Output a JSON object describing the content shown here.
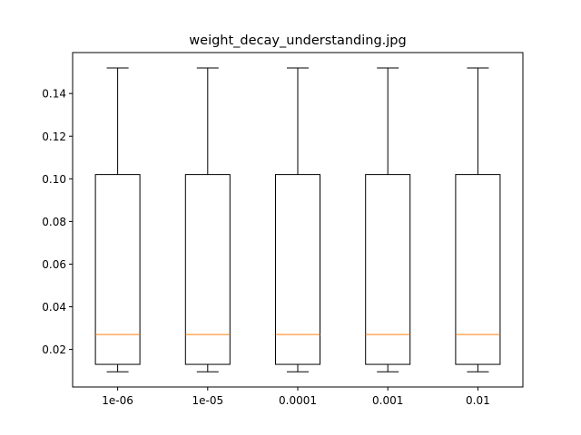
{
  "chart_data": {
    "type": "box",
    "title": "weight_decay_understanding.jpg",
    "xlabel": "",
    "ylabel": "",
    "categories": [
      "1e-06",
      "1e-05",
      "0.0001",
      "0.001",
      "0.01"
    ],
    "boxes": [
      {
        "whislo": 0.0095,
        "q1": 0.013,
        "median": 0.027,
        "q3": 0.102,
        "whishi": 0.152
      },
      {
        "whislo": 0.0095,
        "q1": 0.013,
        "median": 0.027,
        "q3": 0.102,
        "whishi": 0.152
      },
      {
        "whislo": 0.0095,
        "q1": 0.013,
        "median": 0.027,
        "q3": 0.102,
        "whishi": 0.152
      },
      {
        "whislo": 0.0095,
        "q1": 0.013,
        "median": 0.027,
        "q3": 0.102,
        "whishi": 0.152
      },
      {
        "whislo": 0.0095,
        "q1": 0.013,
        "median": 0.027,
        "q3": 0.102,
        "whishi": 0.152
      }
    ],
    "ylim": [
      0.0024,
      0.1592
    ],
    "yticks": [
      0.02,
      0.04,
      0.06,
      0.08,
      0.1,
      0.12,
      0.14
    ],
    "ytick_labels": [
      "0.02",
      "0.04",
      "0.06",
      "0.08",
      "0.10",
      "0.12",
      "0.14"
    ],
    "grid": false,
    "colors": {
      "box": "#000000",
      "median": "#ff7f0e",
      "whisker": "#000000"
    }
  }
}
